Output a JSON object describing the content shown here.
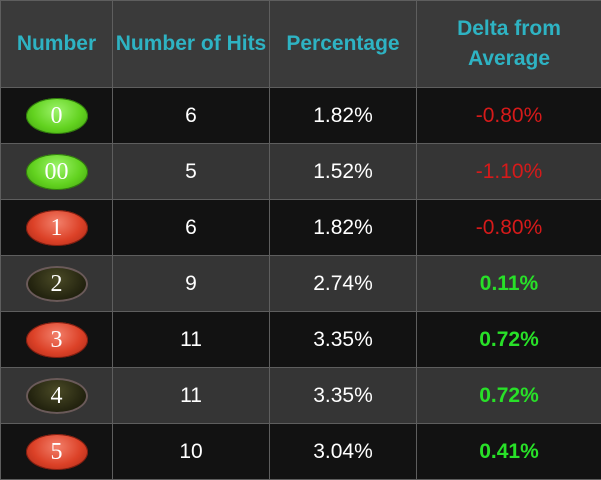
{
  "headers": {
    "number": "Number",
    "hits": "Number of Hits",
    "percentage": "Percentage",
    "delta": "Delta from Average"
  },
  "colors": {
    "header_text": "#2eb3c3",
    "negative": "#d61a1a",
    "positive": "#28e028"
  },
  "rows": [
    {
      "number": "0",
      "ball_color": "green",
      "hits": "6",
      "percentage": "1.82%",
      "delta": "-0.80%",
      "sign": "neg"
    },
    {
      "number": "00",
      "ball_color": "green",
      "hits": "5",
      "percentage": "1.52%",
      "delta": "-1.10%",
      "sign": "neg"
    },
    {
      "number": "1",
      "ball_color": "red",
      "hits": "6",
      "percentage": "1.82%",
      "delta": "-0.80%",
      "sign": "neg"
    },
    {
      "number": "2",
      "ball_color": "black",
      "hits": "9",
      "percentage": "2.74%",
      "delta": "0.11%",
      "sign": "pos"
    },
    {
      "number": "3",
      "ball_color": "red",
      "hits": "11",
      "percentage": "3.35%",
      "delta": "0.72%",
      "sign": "pos"
    },
    {
      "number": "4",
      "ball_color": "black",
      "hits": "11",
      "percentage": "3.35%",
      "delta": "0.72%",
      "sign": "pos"
    },
    {
      "number": "5",
      "ball_color": "red",
      "hits": "10",
      "percentage": "3.04%",
      "delta": "0.41%",
      "sign": "pos"
    }
  ]
}
